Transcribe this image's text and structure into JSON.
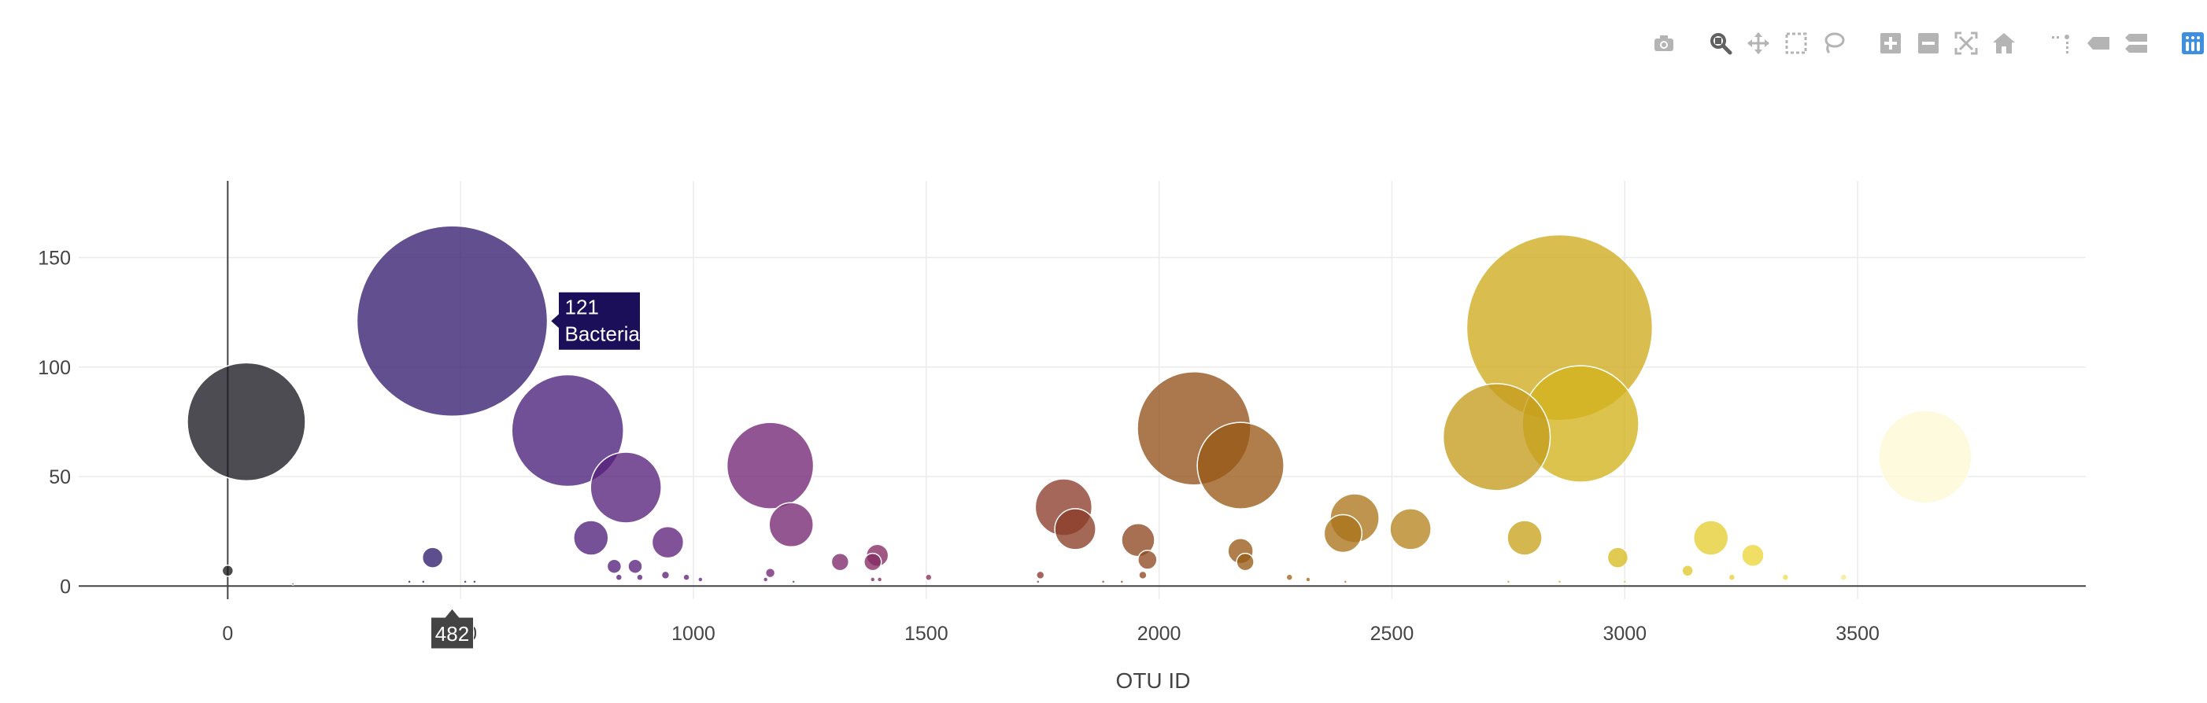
{
  "modebar": {
    "buttons": [
      {
        "name": "camera-icon",
        "label": "Download plot as a png"
      },
      {
        "name": "zoom-icon",
        "label": "Zoom",
        "active": true
      },
      {
        "name": "pan-icon",
        "label": "Pan"
      },
      {
        "name": "box-select-icon",
        "label": "Box Select"
      },
      {
        "name": "lasso-select-icon",
        "label": "Lasso Select"
      },
      {
        "name": "zoom-in-icon",
        "label": "Zoom in"
      },
      {
        "name": "zoom-out-icon",
        "label": "Zoom out"
      },
      {
        "name": "autoscale-icon",
        "label": "Autoscale"
      },
      {
        "name": "reset-axes-icon",
        "label": "Reset axes"
      },
      {
        "name": "spike-lines-icon",
        "label": "Toggle Spike Lines"
      },
      {
        "name": "hover-closest-icon",
        "label": "Show closest data on hover"
      },
      {
        "name": "hover-compare-icon",
        "label": "Compare data on hover"
      },
      {
        "name": "plotly-logo-icon",
        "label": "Produced with Plotly"
      }
    ],
    "colors": {
      "icon": "#b4b4b4",
      "active": "#616161",
      "logo": "#3f8fe0"
    }
  },
  "chart_data": {
    "type": "scatter",
    "mode": "markers",
    "xlabel": "OTU ID",
    "ylabel": "",
    "xlim": [
      -320,
      3990
    ],
    "ylim": [
      -6,
      185
    ],
    "xticks": [
      0,
      500,
      1000,
      1500,
      2000,
      2500,
      3000,
      3500
    ],
    "yticks": [
      0,
      50,
      100,
      150
    ],
    "grid": true,
    "colorscale": [
      "#1a1a1a",
      "#2a1c6a",
      "#4a1f7a",
      "#6e237c",
      "#8a2c5a",
      "#8a3e26",
      "#9a5c16",
      "#b88820",
      "#d4b61c",
      "#eed83c",
      "#fffbe0"
    ],
    "colorscale_range": [
      0,
      3670
    ],
    "points": [
      {
        "x": 40,
        "y": 75
      },
      {
        "x": 482,
        "y": 121
      },
      {
        "x": 730,
        "y": 71
      },
      {
        "x": 855,
        "y": 45
      },
      {
        "x": 440,
        "y": 13
      },
      {
        "x": 780,
        "y": 22
      },
      {
        "x": 945,
        "y": 20
      },
      {
        "x": 0,
        "y": 7
      },
      {
        "x": 830,
        "y": 9
      },
      {
        "x": 875,
        "y": 9
      },
      {
        "x": 840,
        "y": 4
      },
      {
        "x": 885,
        "y": 4
      },
      {
        "x": 940,
        "y": 5
      },
      {
        "x": 985,
        "y": 4
      },
      {
        "x": 1015,
        "y": 3
      },
      {
        "x": 1165,
        "y": 55
      },
      {
        "x": 1210,
        "y": 28
      },
      {
        "x": 1315,
        "y": 11
      },
      {
        "x": 1395,
        "y": 14
      },
      {
        "x": 1385,
        "y": 11
      },
      {
        "x": 1165,
        "y": 6
      },
      {
        "x": 1155,
        "y": 3
      },
      {
        "x": 1385,
        "y": 3
      },
      {
        "x": 1400,
        "y": 3
      },
      {
        "x": 1505,
        "y": 4
      },
      {
        "x": 1795,
        "y": 36
      },
      {
        "x": 1820,
        "y": 26
      },
      {
        "x": 1955,
        "y": 21
      },
      {
        "x": 1975,
        "y": 12
      },
      {
        "x": 1745,
        "y": 5
      },
      {
        "x": 1965,
        "y": 5
      },
      {
        "x": 2075,
        "y": 72
      },
      {
        "x": 2175,
        "y": 55
      },
      {
        "x": 2175,
        "y": 16
      },
      {
        "x": 2185,
        "y": 11
      },
      {
        "x": 2280,
        "y": 4
      },
      {
        "x": 2320,
        "y": 3
      },
      {
        "x": 2420,
        "y": 31
      },
      {
        "x": 2395,
        "y": 24
      },
      {
        "x": 2540,
        "y": 26
      },
      {
        "x": 2725,
        "y": 68
      },
      {
        "x": 2860,
        "y": 118
      },
      {
        "x": 2905,
        "y": 74
      },
      {
        "x": 2785,
        "y": 22
      },
      {
        "x": 2985,
        "y": 13
      },
      {
        "x": 3185,
        "y": 22
      },
      {
        "x": 3275,
        "y": 14
      },
      {
        "x": 3135,
        "y": 7
      },
      {
        "x": 3230,
        "y": 4
      },
      {
        "x": 3345,
        "y": 4
      },
      {
        "x": 3470,
        "y": 4
      },
      {
        "x": 3645,
        "y": 59
      },
      {
        "x": 140,
        "y": 1
      },
      {
        "x": 390,
        "y": 2
      },
      {
        "x": 420,
        "y": 2
      },
      {
        "x": 510,
        "y": 2
      },
      {
        "x": 530,
        "y": 2
      },
      {
        "x": 1215,
        "y": 2
      },
      {
        "x": 1740,
        "y": 2
      },
      {
        "x": 1880,
        "y": 2
      },
      {
        "x": 1920,
        "y": 2
      },
      {
        "x": 2400,
        "y": 2
      },
      {
        "x": 2750,
        "y": 2
      },
      {
        "x": 2860,
        "y": 2
      },
      {
        "x": 3000,
        "y": 2
      }
    ],
    "hover": {
      "x": 482,
      "y": 121,
      "text": "Bacteria",
      "value_label": "121",
      "x_label": "482",
      "bg": "#1b0f5a",
      "axis_bg": "#444444"
    }
  }
}
